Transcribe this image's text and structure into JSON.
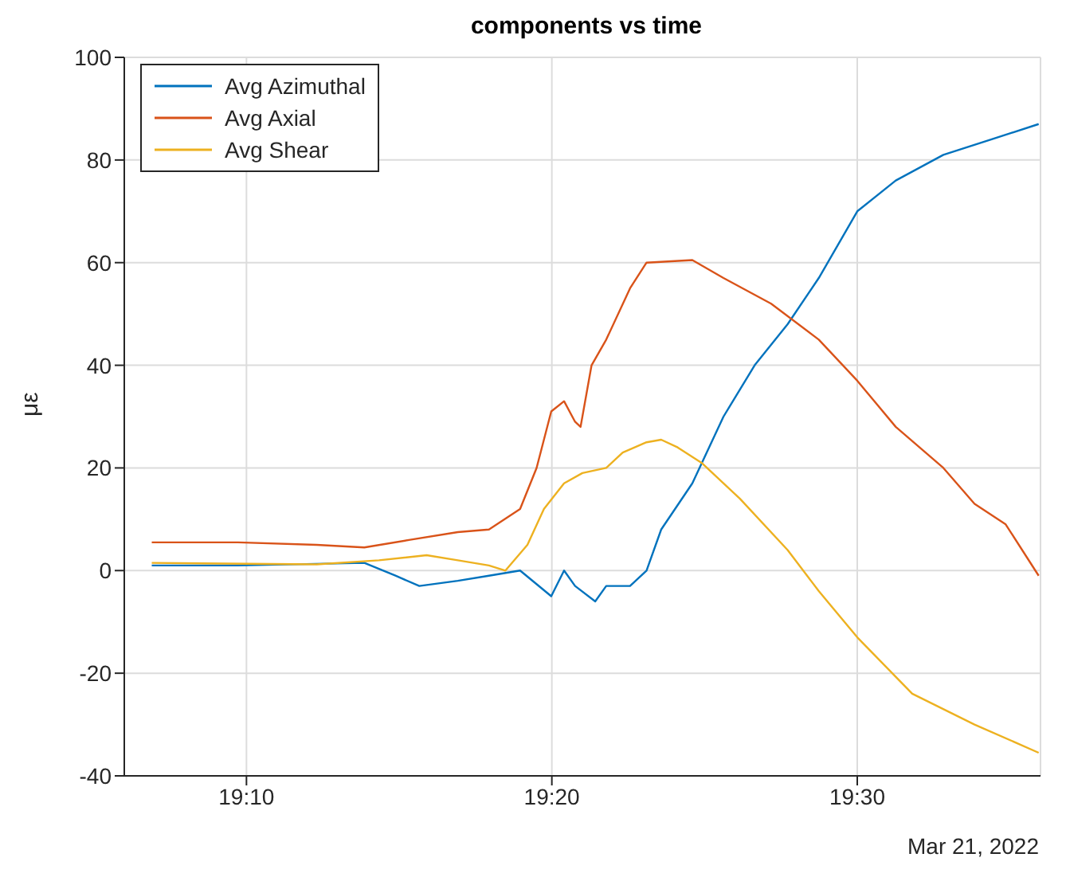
{
  "chart_data": {
    "type": "line",
    "title": "components vs time",
    "ylabel": "με",
    "annotations": [
      "Mar 21, 2022"
    ],
    "xlim": [
      19.1,
      19.6
    ],
    "xticks": [
      {
        "value": 19.16667,
        "label": "19:10"
      },
      {
        "value": 19.33333,
        "label": "19:20"
      },
      {
        "value": 19.5,
        "label": "19:30"
      }
    ],
    "ylim": [
      -40,
      100
    ],
    "yticks": [
      -40,
      -20,
      0,
      20,
      40,
      60,
      80,
      100
    ],
    "grid": true,
    "legend": "top left",
    "marker": "none",
    "line_style": "solid",
    "series": [
      {
        "name": "Avg Azimuthal",
        "color": "#0072bd",
        "x": [
          19.115,
          19.162,
          19.231,
          19.248,
          19.261,
          19.282,
          19.299,
          19.316,
          19.333,
          19.34,
          19.346,
          19.357,
          19.363,
          19.376,
          19.385,
          19.393,
          19.41,
          19.427,
          19.444,
          19.462,
          19.479,
          19.5,
          19.521,
          19.547,
          19.573,
          19.599
        ],
        "values": [
          1,
          1,
          1.5,
          -1,
          -3,
          -2,
          -1,
          0,
          -5,
          0,
          -3,
          -6,
          -3,
          -3,
          0,
          8,
          17,
          30,
          40,
          48,
          57,
          70,
          76,
          81,
          84,
          87
        ]
      },
      {
        "name": "Avg Axial",
        "color": "#d95319",
        "x": [
          19.115,
          19.162,
          19.205,
          19.231,
          19.256,
          19.282,
          19.299,
          19.316,
          19.325,
          19.333,
          19.34,
          19.346,
          19.349,
          19.355,
          19.363,
          19.376,
          19.385,
          19.41,
          19.427,
          19.453,
          19.479,
          19.5,
          19.521,
          19.547,
          19.564,
          19.581,
          19.599
        ],
        "values": [
          5.5,
          5.5,
          5,
          4.5,
          6,
          7.5,
          8,
          12,
          20,
          31,
          33,
          29,
          28,
          40,
          45,
          55,
          60,
          60.5,
          57,
          52,
          45,
          37,
          28,
          20,
          13,
          9,
          -1
        ]
      },
      {
        "name": "Avg Shear",
        "color": "#edb120",
        "x": [
          19.115,
          19.205,
          19.239,
          19.265,
          19.282,
          19.299,
          19.308,
          19.32,
          19.329,
          19.34,
          19.35,
          19.363,
          19.372,
          19.385,
          19.393,
          19.402,
          19.415,
          19.436,
          19.462,
          19.479,
          19.5,
          19.53,
          19.564,
          19.599
        ],
        "values": [
          1.5,
          1.2,
          2,
          3,
          2,
          1,
          0,
          5,
          12,
          17,
          19,
          20,
          23,
          25,
          25.5,
          24,
          21,
          14,
          4,
          -4,
          -13,
          -24,
          -30,
          -35.5
        ]
      }
    ]
  }
}
